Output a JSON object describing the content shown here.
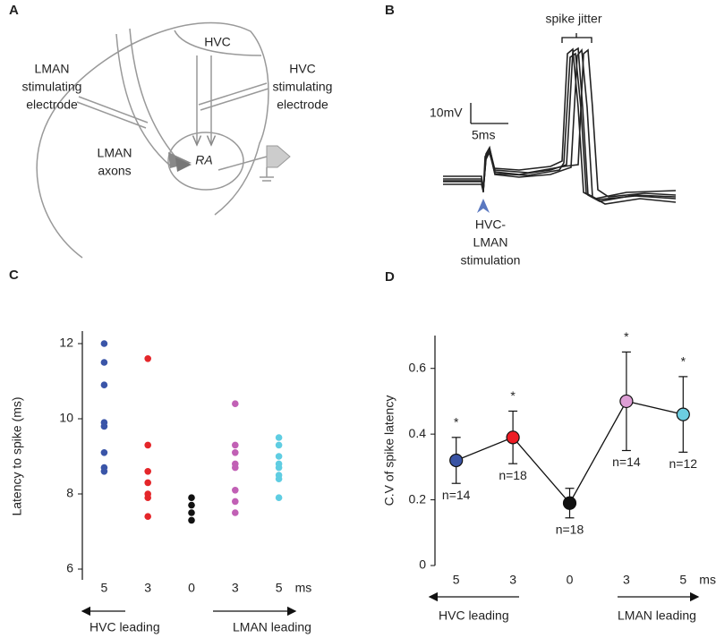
{
  "panel_a": {
    "label": "A",
    "hvc": "HVC",
    "lman_electrode": [
      "LMAN",
      "stimulating",
      "electrode"
    ],
    "hvc_electrode": [
      "HVC",
      "stimulating",
      "electrode"
    ],
    "lman_axons": [
      "LMAN",
      "axons"
    ],
    "ra": "RA"
  },
  "panel_b": {
    "label": "B",
    "jitter": "spike jitter",
    "scale_v": "10mV",
    "scale_t": "5ms",
    "stimulation": [
      "HVC-",
      "LMAN",
      "stimulation"
    ]
  },
  "chart_data": [
    {
      "type": "strip",
      "panel_label": "C",
      "y_label": "Latency to spike (ms)",
      "categories": [
        "5",
        "3",
        "0",
        "3",
        "5"
      ],
      "x_unit": "ms",
      "left_label": "HVC leading",
      "right_label": "LMAN leading",
      "colors": [
        "#3a55a8",
        "#e4262a",
        "#111111",
        "#c160b5",
        "#5fcde2"
      ],
      "values": [
        [
          12.0,
          11.5,
          10.9,
          9.9,
          9.8,
          9.1,
          8.7,
          8.6
        ],
        [
          11.6,
          9.3,
          8.6,
          8.3,
          8.0,
          7.9,
          7.4
        ],
        [
          7.9,
          7.7,
          7.5,
          7.3
        ],
        [
          10.4,
          9.3,
          9.1,
          8.8,
          8.7,
          8.1,
          7.8,
          7.5
        ],
        [
          9.5,
          9.3,
          9.0,
          8.8,
          8.7,
          8.5,
          8.4,
          7.9
        ]
      ],
      "ylim": [
        6,
        12
      ],
      "yticks": [
        6,
        8,
        10,
        12
      ]
    },
    {
      "type": "line",
      "panel_label": "D",
      "y_label": "C.V of spike latency",
      "categories": [
        "5",
        "3",
        "0",
        "3",
        "5"
      ],
      "x_unit": "ms",
      "left_label": "HVC leading",
      "right_label": "LMAN leading",
      "colors": [
        "#3953a4",
        "#ed1c24",
        "#111111",
        "#dd9ed5",
        "#6ccde0"
      ],
      "values": [
        0.32,
        0.39,
        0.19,
        0.5,
        0.46
      ],
      "errors": [
        0.07,
        0.08,
        0.045,
        0.15,
        0.115
      ],
      "n_labels": [
        "n=14",
        "n=18",
        "n=18",
        "n=14",
        "n=12"
      ],
      "significance": [
        "*",
        "*",
        null,
        "*",
        "*"
      ],
      "ylim": [
        0,
        0.7
      ],
      "yticks": [
        0,
        0.2,
        0.4,
        0.6
      ]
    }
  ]
}
